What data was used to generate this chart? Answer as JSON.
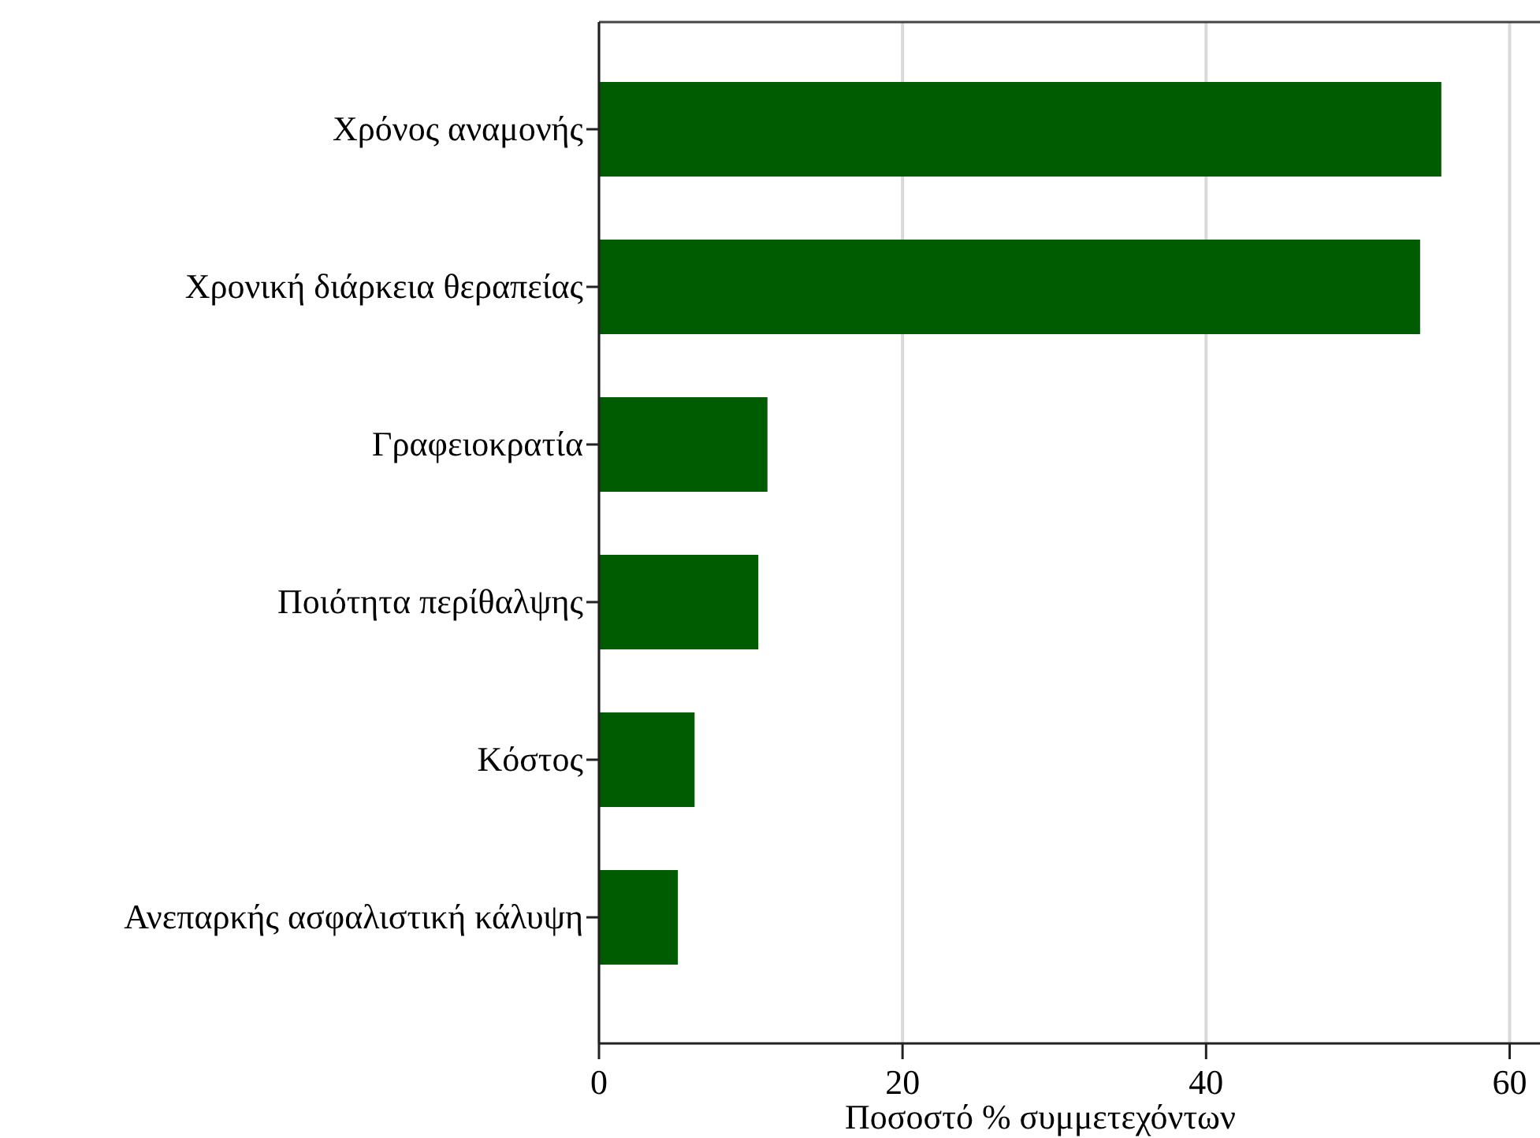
{
  "chart_data": {
    "type": "bar",
    "orientation": "horizontal",
    "xlabel": "Ποσοστό % συμμετεχόντων",
    "categories": [
      "Χρόνος αναμονής",
      "Χρονική διάρκεια θεραπείας",
      "Γραφειοκρατία",
      "Ποιότητα περίθαλψης",
      "Κόστος",
      "Ανεπαρκής ασφαλιστική κάλυψη"
    ],
    "values": [
      55.5,
      54.1,
      11.1,
      10.5,
      6.3,
      5.2
    ],
    "color": "#005c00",
    "xlim": [
      0,
      62
    ],
    "xticks": [
      0,
      20,
      40,
      60
    ],
    "grid": "x"
  }
}
